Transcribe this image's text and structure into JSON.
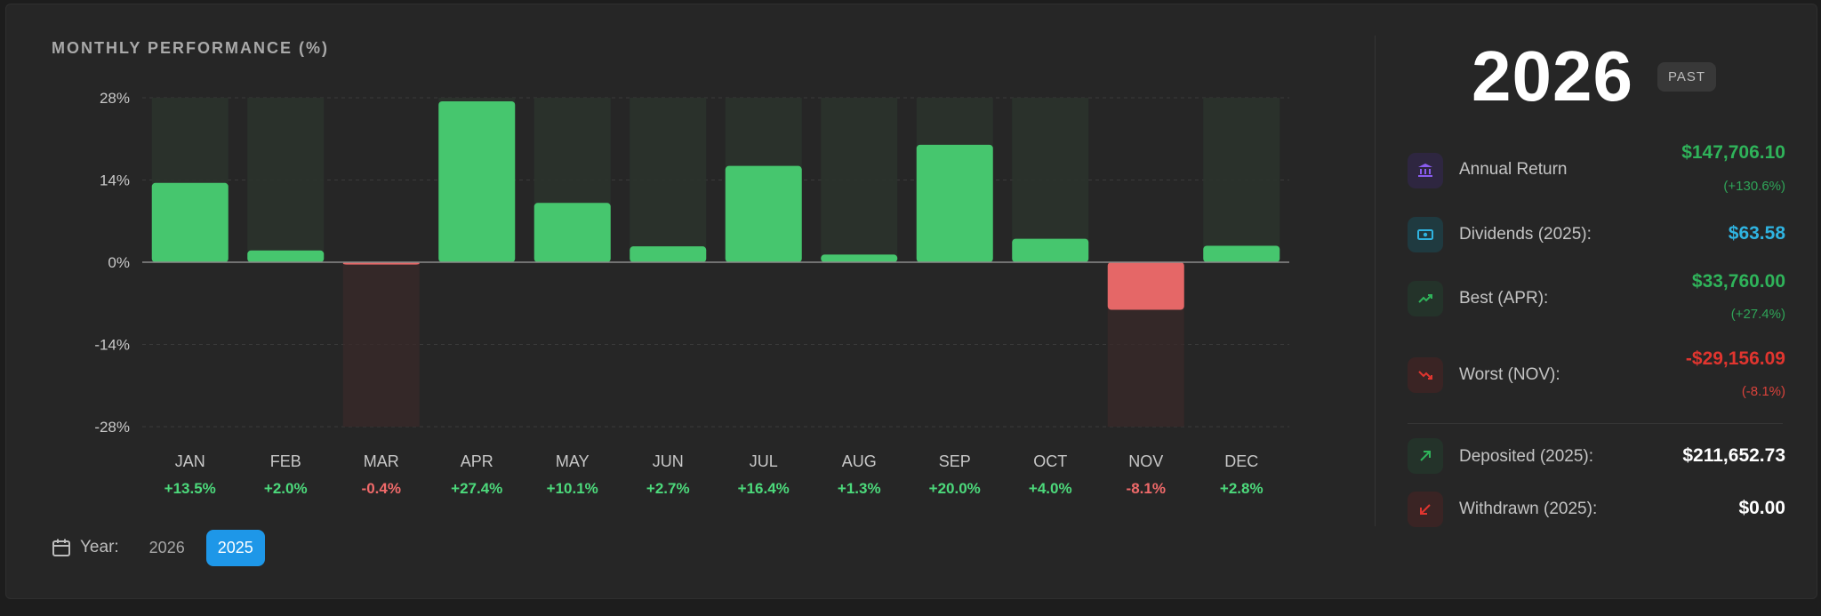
{
  "chart_title": "MONTHLY PERFORMANCE (%)",
  "chart_data": {
    "type": "bar",
    "title": "MONTHLY PERFORMANCE (%)",
    "categories": [
      "JAN",
      "FEB",
      "MAR",
      "APR",
      "MAY",
      "JUN",
      "JUL",
      "AUG",
      "SEP",
      "OCT",
      "NOV",
      "DEC"
    ],
    "values": [
      13.5,
      2.0,
      -0.4,
      27.4,
      10.1,
      2.7,
      16.4,
      1.3,
      20.0,
      4.0,
      -8.1,
      2.8
    ],
    "value_labels": [
      "+13.5%",
      "+2.0%",
      "-0.4%",
      "+27.4%",
      "+10.1%",
      "+2.7%",
      "+16.4%",
      "+1.3%",
      "+20.0%",
      "+4.0%",
      "-8.1%",
      "+2.8%"
    ],
    "y_ticks": [
      28,
      14,
      0,
      -14,
      -28
    ],
    "y_tick_labels": [
      "28%",
      "14%",
      "0%",
      "-14%",
      "-28%"
    ],
    "ylim": [
      -28,
      28
    ],
    "grid": true,
    "colors": {
      "positive": "#46c66e",
      "negative": "#e56767",
      "positive_label": "#4cd97b",
      "negative_label": "#f06a6a"
    }
  },
  "year_selector": {
    "label": "Year:",
    "options": [
      "2026",
      "2025"
    ],
    "selected": "2025"
  },
  "summary": {
    "year": "2026",
    "badge": "PAST",
    "annual_return": {
      "label": "Annual Return",
      "value": "$147,706.10",
      "sub": "(+130.6%)",
      "icon": "bank-icon",
      "color": "#2fb35a"
    },
    "dividends": {
      "label": "Dividends (2025):",
      "value": "$63.58",
      "icon": "cash-icon",
      "color": "#2fb3e0"
    },
    "best": {
      "label": "Best (APR):",
      "value": "$33,760.00",
      "sub": "(+27.4%)",
      "icon": "trend-up-icon",
      "color": "#2fb35a"
    },
    "worst": {
      "label": "Worst (NOV):",
      "value": "-$29,156.09",
      "sub": "(-8.1%)",
      "icon": "trend-down-icon",
      "color": "#e0352f"
    },
    "deposited": {
      "label": "Deposited (2025):",
      "value": "$211,652.73",
      "icon": "arrow-up-right-icon",
      "color": "#ffffff"
    },
    "withdrawn": {
      "label": "Withdrawn (2025):",
      "value": "$0.00",
      "icon": "arrow-down-left-icon",
      "color": "#ffffff"
    }
  }
}
